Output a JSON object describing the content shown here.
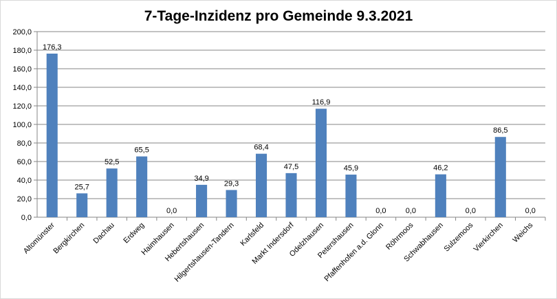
{
  "chart_data": {
    "type": "bar",
    "title": "7-Tage-Inzidenz pro Gemeinde 9.3.2021",
    "xlabel": "",
    "ylabel": "",
    "ylim": [
      0,
      200
    ],
    "yticks": [
      "0,0",
      "20,0",
      "40,0",
      "60,0",
      "80,0",
      "100,0",
      "120,0",
      "140,0",
      "160,0",
      "180,0",
      "200,0"
    ],
    "grid": true,
    "legend": "none",
    "bar_color": "#4f81bd",
    "grid_color": "#868686",
    "categories": [
      "Altomünster",
      "Bergkirchen",
      "Dachau",
      "Erdweg",
      "Haimhausen",
      "Hebertshausen",
      "Hilgertshausen-Tandern",
      "Karlsfeld",
      "Markt Indersdorf",
      "Odelzhausen",
      "Petershausen",
      "Pfaffenhofen a.d. Glonn",
      "Röhrmoos",
      "Schwabhausen",
      "Sulzemoos",
      "Vierkirchen",
      "Weichs"
    ],
    "values": [
      176.3,
      25.7,
      52.5,
      65.5,
      0.0,
      34.9,
      29.3,
      68.4,
      47.5,
      116.9,
      45.9,
      0.0,
      0.0,
      46.2,
      0.0,
      86.5,
      0.0
    ],
    "data_labels": [
      "176,3",
      "25,7",
      "52,5",
      "65,5",
      "0,0",
      "34,9",
      "29,3",
      "68,4",
      "47,5",
      "116,9",
      "45,9",
      "0,0",
      "0,0",
      "46,2",
      "0,0",
      "86,5",
      "0,0"
    ]
  }
}
